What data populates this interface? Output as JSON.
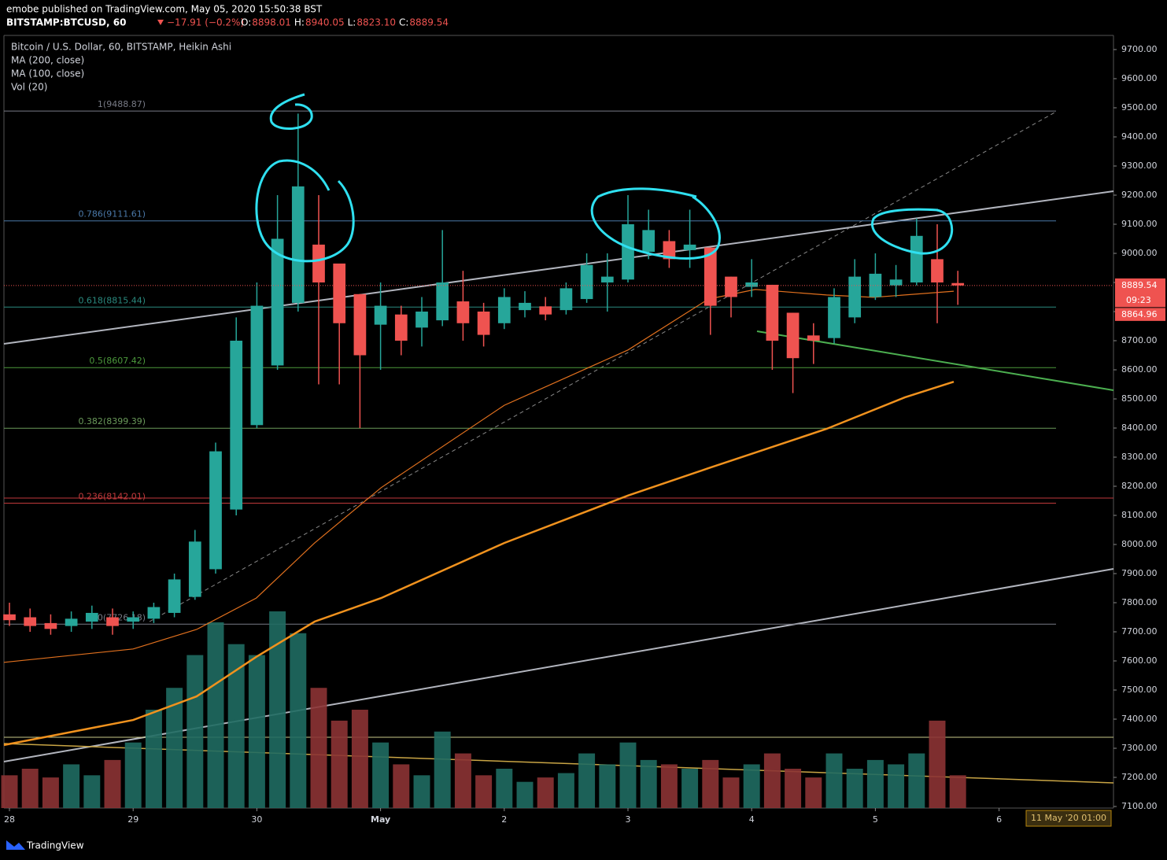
{
  "header": {
    "publisher": "emobe published on TradingView.com, May 05, 2020 15:50:38 BST",
    "symbol": "BITSTAMP:BTCUSD, 60",
    "change": "−17.91 (−0.2%)",
    "ohlc": [
      {
        "label": "O:",
        "value": "8898.01"
      },
      {
        "label": "H:",
        "value": "8940.05"
      },
      {
        "label": "L:",
        "value": "8823.10"
      },
      {
        "label": "C:",
        "value": "8889.54"
      }
    ]
  },
  "legend": {
    "instrument": "Bitcoin / U.S. Dollar, 60, BITSTAMP, Heikin Ashi",
    "volume": "Vol (20)"
  },
  "footer": {
    "brand": "TradingView",
    "date_tag": "11 May '20  01:00"
  },
  "chart_data": {
    "type": "candlestick",
    "up_color": "#26a69a",
    "down_color": "#ef5350",
    "xlim": [
      -1.07,
      214.2
    ],
    "xticks": [
      {
        "value": 0,
        "label": "28"
      },
      {
        "value": 24,
        "label": "29"
      },
      {
        "value": 48,
        "label": "30"
      },
      {
        "value": 72,
        "label": "May"
      },
      {
        "value": 96,
        "label": "2"
      },
      {
        "value": 120,
        "label": "3"
      },
      {
        "value": 144,
        "label": "4"
      },
      {
        "value": 168,
        "label": "5"
      },
      {
        "value": 192,
        "label": "6"
      }
    ],
    "ylim": [
      7094.6,
      9748.6
    ],
    "yticks": [
      {
        "value": 7100,
        "label": "7100.00"
      },
      {
        "value": 7200,
        "label": "7200.00"
      },
      {
        "value": 7300,
        "label": "7300.00"
      },
      {
        "value": 7400,
        "label": "7400.00"
      },
      {
        "value": 7500,
        "label": "7500.00"
      },
      {
        "value": 7600,
        "label": "7600.00"
      },
      {
        "value": 7700,
        "label": "7700.00"
      },
      {
        "value": 7800,
        "label": "7800.00"
      },
      {
        "value": 7900,
        "label": "7900.00"
      },
      {
        "value": 8000,
        "label": "8000.00"
      },
      {
        "value": 8100,
        "label": "8100.00"
      },
      {
        "value": 8200,
        "label": "8200.00"
      },
      {
        "value": 8300,
        "label": "8300.00"
      },
      {
        "value": 8400,
        "label": "8400.00"
      },
      {
        "value": 8500,
        "label": "8500.00"
      },
      {
        "value": 8600,
        "label": "8600.00"
      },
      {
        "value": 8700,
        "label": "8700.00"
      },
      {
        "value": 8800,
        "label": "8800.00"
      },
      {
        "value": 8900,
        "label": "8900.00"
      },
      {
        "value": 9000,
        "label": "9000.00"
      },
      {
        "value": 9100,
        "label": "9100.00"
      },
      {
        "value": 9200,
        "label": "9200.00"
      },
      {
        "value": 9300,
        "label": "9300.00"
      },
      {
        "value": 9400,
        "label": "9400.00"
      },
      {
        "value": 9500,
        "label": "9500.00"
      },
      {
        "value": 9600,
        "label": "9600.00"
      },
      {
        "value": 9700,
        "label": "9700.00"
      }
    ],
    "x": [
      0,
      4,
      8,
      12,
      16,
      20,
      24,
      28,
      32,
      36,
      40,
      44,
      48,
      52,
      56,
      60,
      64,
      68,
      72,
      76,
      80,
      84,
      88,
      92,
      96,
      100,
      104,
      108,
      112,
      116,
      120,
      124,
      128,
      132,
      136,
      140,
      144,
      148,
      152,
      156,
      160,
      164,
      168,
      172,
      176,
      180,
      184
    ],
    "candles": [
      [
        7760,
        7800,
        7720,
        7740
      ],
      [
        7750,
        7780,
        7700,
        7720
      ],
      [
        7730,
        7760,
        7690,
        7710
      ],
      [
        7720,
        7770,
        7700,
        7745
      ],
      [
        7735,
        7790,
        7710,
        7765
      ],
      [
        7750,
        7780,
        7690,
        7720
      ],
      [
        7735,
        7770,
        7710,
        7750
      ],
      [
        7745,
        7800,
        7730,
        7785
      ],
      [
        7765,
        7900,
        7750,
        7880
      ],
      [
        7820,
        8050,
        7810,
        8010
      ],
      [
        7915,
        8350,
        7900,
        8320
      ],
      [
        8120,
        8780,
        8100,
        8700
      ],
      [
        8410,
        8900,
        8400,
        8820
      ],
      [
        8615,
        9200,
        8600,
        9050
      ],
      [
        8830,
        9480,
        8800,
        9230
      ],
      [
        9030,
        9200,
        8550,
        8900
      ],
      [
        8965,
        8965,
        8550,
        8760
      ],
      [
        8860,
        8860,
        8400,
        8650
      ],
      [
        8755,
        8900,
        8600,
        8820
      ],
      [
        8790,
        8820,
        8650,
        8700
      ],
      [
        8745,
        8850,
        8680,
        8800
      ],
      [
        8770,
        9080,
        8750,
        8900
      ],
      [
        8835,
        8940,
        8700,
        8760
      ],
      [
        8800,
        8830,
        8680,
        8720
      ],
      [
        8760,
        8880,
        8740,
        8850
      ],
      [
        8805,
        8870,
        8780,
        8830
      ],
      [
        8818,
        8850,
        8770,
        8790
      ],
      [
        8805,
        8900,
        8790,
        8880
      ],
      [
        8843,
        9000,
        8830,
        8960
      ],
      [
        8900,
        9000,
        8800,
        8920
      ],
      [
        8910,
        9200,
        8900,
        9100
      ],
      [
        9005,
        9150,
        8980,
        9080
      ],
      [
        9042,
        9080,
        8950,
        8980
      ],
      [
        9011,
        9150,
        8950,
        9030
      ],
      [
        9020,
        9020,
        8720,
        8820
      ],
      [
        8920,
        8920,
        8780,
        8850
      ],
      [
        8885,
        8980,
        8850,
        8900
      ],
      [
        8892,
        8892,
        8600,
        8700
      ],
      [
        8796,
        8796,
        8520,
        8640
      ],
      [
        8718,
        8760,
        8620,
        8700
      ],
      [
        8709,
        8880,
        8690,
        8850
      ],
      [
        8780,
        8980,
        8760,
        8920
      ],
      [
        8850,
        9000,
        8840,
        8930
      ],
      [
        8890,
        8960,
        8850,
        8910
      ],
      [
        8900,
        9120,
        8890,
        9060
      ],
      [
        8980,
        9100,
        8760,
        8900
      ],
      [
        8898.01,
        8940.05,
        8823.1,
        8889.54
      ]
    ],
    "volume": [
      15,
      18,
      14,
      20,
      15,
      22,
      30,
      45,
      55,
      70,
      85,
      75,
      70,
      90,
      80,
      55,
      40,
      45,
      30,
      20,
      15,
      35,
      25,
      15,
      18,
      12,
      14,
      16,
      25,
      20,
      30,
      22,
      20,
      18,
      22,
      14,
      20,
      25,
      18,
      14,
      25,
      18,
      22,
      20,
      25,
      40,
      15
    ],
    "series": [
      {
        "name": "MA (200, close)",
        "color": "#f0921e",
        "width": 2.5,
        "x": [
          -1.07,
          24,
          36.3,
          47.9,
          59.2,
          72.1,
          96,
          120,
          135.6,
          158.5,
          173.7,
          183.2
        ],
        "values": [
          7311,
          7397,
          7478,
          7614,
          7735,
          7816,
          8005,
          8168,
          8262,
          8397,
          8505,
          8559
        ]
      },
      {
        "name": "MA (100, close)",
        "color": "#e0701e",
        "width": 1.2,
        "x": [
          -1.07,
          24,
          36.3,
          47.9,
          59.2,
          72.1,
          96,
          120,
          135.6,
          144.7,
          158.5,
          167.6,
          183.2
        ],
        "values": [
          7595,
          7641,
          7708,
          7816,
          8005,
          8195,
          8478,
          8668,
          8843,
          8876,
          8857,
          8849,
          8870
        ]
      }
    ],
    "fib": [
      {
        "label": "1(9488.87)",
        "value": 9488.87,
        "color": "#787b86"
      },
      {
        "label": "0.786(9111.61)",
        "value": 9111.61,
        "color": "#4a78a8"
      },
      {
        "label": "0.618(8815.44)",
        "value": 8815.44,
        "color": "#2a8a7f"
      },
      {
        "label": "0.5(8607.42)",
        "value": 8607.42,
        "color": "#4c9a3c"
      },
      {
        "label": "0.382(8399.39)",
        "value": 8399.39,
        "color": "#6a9a5a"
      },
      {
        "label": "0.236(8142.01)",
        "value": 8142.01,
        "color": "#c0393b"
      },
      {
        "label": "0(7726.18)",
        "value": 7726.18,
        "color": "#787b86"
      }
    ],
    "price_tag": {
      "value": 8889.54,
      "label": "8889.54"
    },
    "countdown": "09:23",
    "ma_tag": "8864.96"
  }
}
